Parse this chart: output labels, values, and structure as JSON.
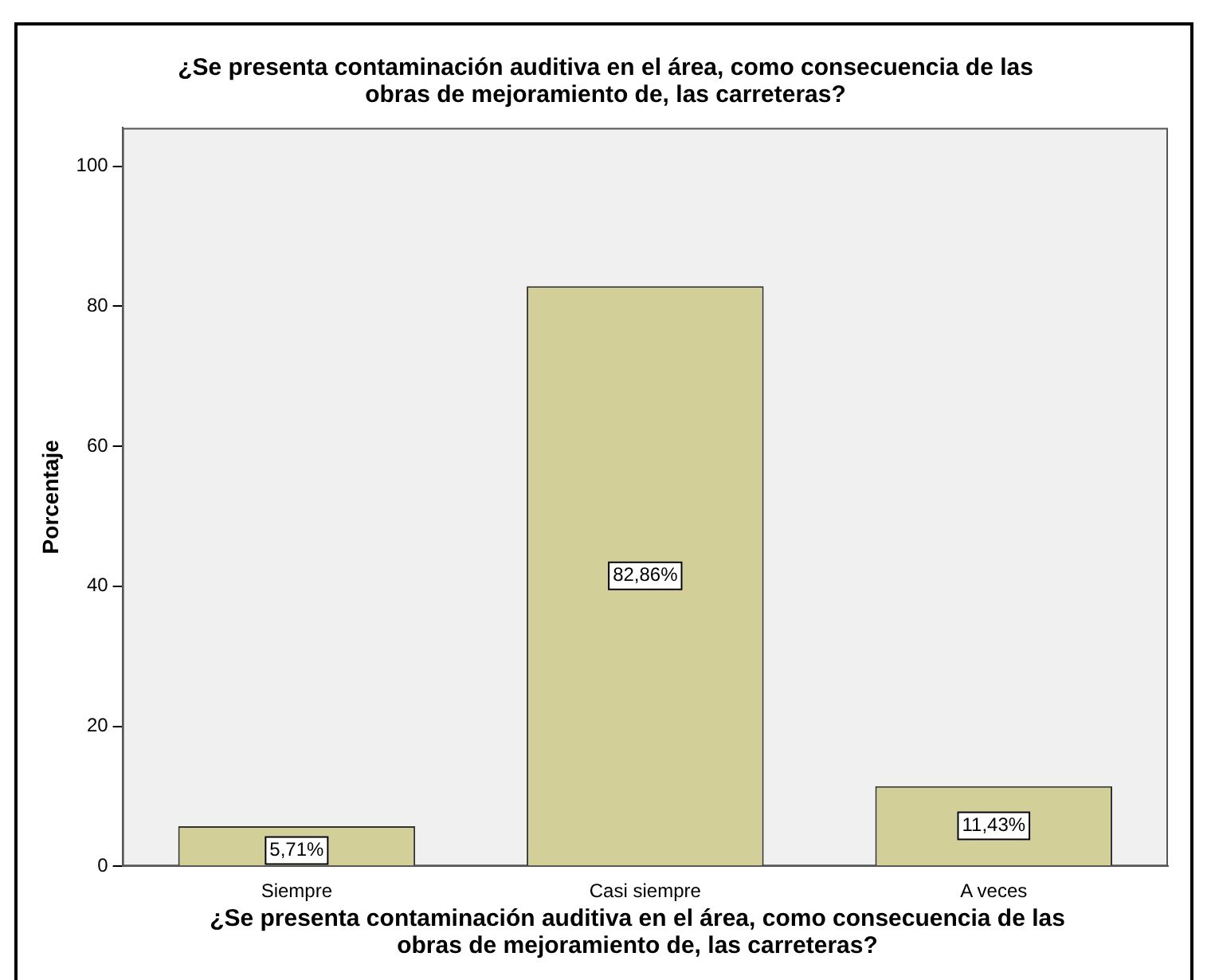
{
  "chart_data": {
    "type": "bar",
    "title": "¿Se presenta contaminación auditiva en el área, como consecuencia de las obras de mejoramiento de, las carreteras?",
    "xlabel": "¿Se presenta contaminación auditiva en el área, como consecuencia de las obras de mejoramiento de, las carreteras?",
    "ylabel": "Porcentaje",
    "categories": [
      "Siempre",
      "Casi siempre",
      "A veces"
    ],
    "values": [
      5.71,
      82.86,
      11.43
    ],
    "value_labels": [
      "5,71%",
      "82,86%",
      "11,43%"
    ],
    "color": "#d2cf98",
    "ylim": [
      0,
      105.5
    ],
    "yticks": [
      0,
      20,
      40,
      60,
      80,
      100
    ],
    "grid": false,
    "legend": false
  }
}
